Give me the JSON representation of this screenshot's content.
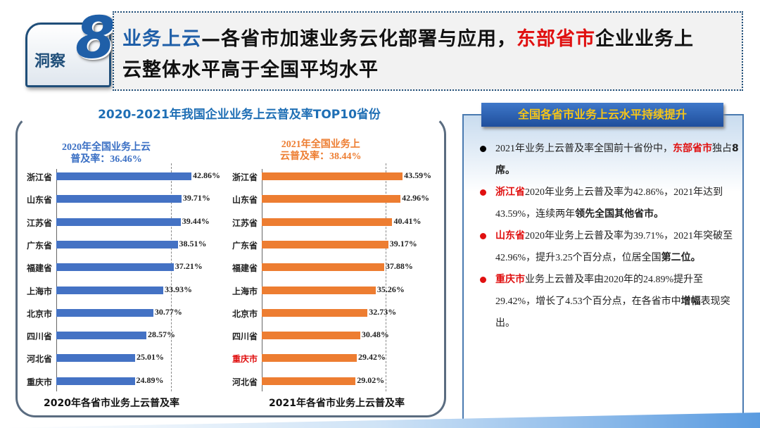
{
  "header": {
    "badge_label": "洞察",
    "badge_number": "8",
    "title_part1": "业务上云",
    "title_part2": "—各省市加速业务云化部署与应用，",
    "title_red": "东部省市",
    "title_part3": "企业业务上",
    "title_line2": "云整体水平高于全国平均水平"
  },
  "chart_data": [
    {
      "type": "bar",
      "orientation": "horizontal",
      "title": "2020-2021年我国企业业务上云普及率TOP10省份",
      "xlabel": "2020年各省市业务上云普及率",
      "annotation": "2020年全国业务上云普及率：36.46%",
      "annotation_line1": "2020年全国业务上云",
      "annotation_line2": "普及率：36.46%",
      "average": 36.46,
      "color": "#4472c4",
      "categories": [
        "浙江省",
        "山东省",
        "江苏省",
        "广东省",
        "福建省",
        "上海市",
        "北京市",
        "四川省",
        "河北省",
        "重庆市"
      ],
      "values": [
        42.86,
        39.71,
        39.44,
        38.51,
        37.21,
        33.93,
        30.77,
        28.57,
        25.01,
        24.89
      ],
      "labels": [
        "42.86%",
        "39.71%",
        "39.44%",
        "38.51%",
        "37.21%",
        "33.93%",
        "30.77%",
        "28.57%",
        "25.01%",
        "24.89%"
      ]
    },
    {
      "type": "bar",
      "orientation": "horizontal",
      "xlabel": "2021年各省市业务上云普及率",
      "annotation_line1": "2021年全国业务上",
      "annotation_line2": "云普及率：38.44%",
      "average": 38.44,
      "color": "#ed7d31",
      "highlight": "重庆市",
      "categories": [
        "浙江省",
        "山东省",
        "江苏省",
        "广东省",
        "福建省",
        "上海市",
        "北京市",
        "四川省",
        "重庆市",
        "河北省"
      ],
      "values": [
        43.59,
        42.96,
        40.41,
        39.17,
        37.88,
        35.26,
        32.73,
        30.48,
        29.42,
        29.02
      ],
      "labels": [
        "43.59%",
        "42.96%",
        "40.41%",
        "39.17%",
        "37.88%",
        "35.26%",
        "32.73%",
        "30.48%",
        "29.42%",
        "29.02%"
      ]
    }
  ],
  "panel": {
    "title": "全国各省市业务上云水平持续提升",
    "items": [
      {
        "bullet": "#000",
        "segs": [
          [
            "n",
            "2021年业务上云普及率全国前十省份中，"
          ],
          [
            "r",
            "东部省市"
          ],
          [
            "n",
            "独占"
          ],
          [
            "b",
            "8席。"
          ]
        ]
      },
      {
        "bullet": "#e01010",
        "segs": [
          [
            "r",
            "浙江省"
          ],
          [
            "n",
            "2020年业务上云普及率为42.86%，2021年达到43.59%，连续两年"
          ],
          [
            "b",
            "领先全国其他省市。"
          ]
        ]
      },
      {
        "bullet": "#e01010",
        "segs": [
          [
            "r",
            "山东省"
          ],
          [
            "n",
            "2020年业务上云普及率为39.71%，2021年突破至42.96%，提升3.25个百分点，位居全国"
          ],
          [
            "b",
            "第二位。"
          ]
        ]
      },
      {
        "bullet": "#e01010",
        "segs": [
          [
            "r",
            "重庆市"
          ],
          [
            "n",
            "业务上云普及率由2020年的24.89%提升至29.42%，增长了4.53个百分点，在各省市中"
          ],
          [
            "b",
            "增幅"
          ],
          [
            "n",
            "表现突出。"
          ]
        ]
      }
    ]
  }
}
